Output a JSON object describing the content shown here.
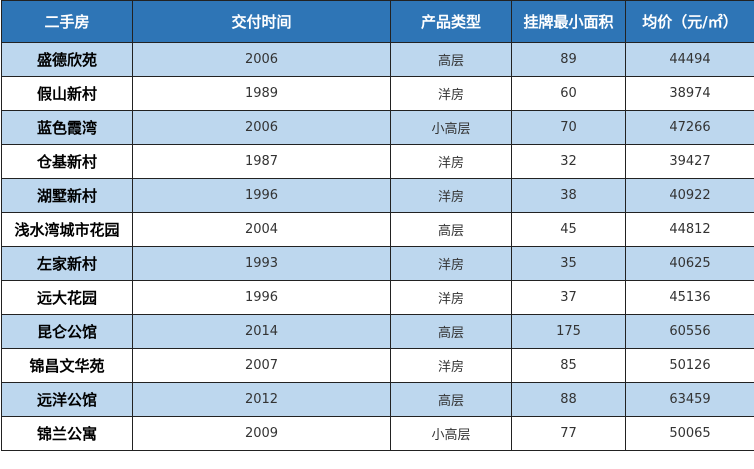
{
  "table": {
    "headers": [
      "二手房",
      "交付时间",
      "产品类型",
      "挂牌最小面积",
      "均价（元/㎡）"
    ],
    "rows": [
      [
        "盛德欣苑",
        "2006",
        "高层",
        "89",
        "44494"
      ],
      [
        "假山新村",
        "1989",
        "洋房",
        "60",
        "38974"
      ],
      [
        "蓝色霞湾",
        "2006",
        "小高层",
        "70",
        "47266"
      ],
      [
        "仓基新村",
        "1987",
        "洋房",
        "32",
        "39427"
      ],
      [
        "湖墅新村",
        "1996",
        "洋房",
        "38",
        "40922"
      ],
      [
        "浅水湾城市花园",
        "2004",
        "高层",
        "45",
        "44812"
      ],
      [
        "左家新村",
        "1993",
        "洋房",
        "35",
        "40625"
      ],
      [
        "远大花园",
        "1996",
        "洋房",
        "37",
        "45136"
      ],
      [
        "昆仑公馆",
        "2014",
        "高层",
        "175",
        "60556"
      ],
      [
        "锦昌文华苑",
        "2007",
        "洋房",
        "85",
        "50126"
      ],
      [
        "远洋公馆",
        "2012",
        "高层",
        "88",
        "63459"
      ],
      [
        "锦兰公寓",
        "2009",
        "小高层",
        "77",
        "50065"
      ]
    ]
  },
  "colors": {
    "header_bg": "#2E75B6",
    "header_text": "#FFFFFF",
    "band_row_bg": "#BDD7EE",
    "plain_row_bg": "#FFFFFF",
    "border": "#222222"
  }
}
